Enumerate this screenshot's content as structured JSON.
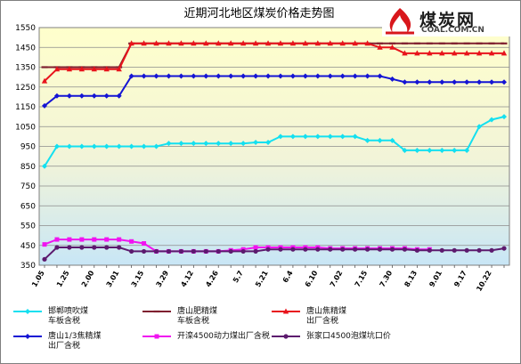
{
  "logo": {
    "cn": "煤炭网",
    "en": "COAL.COM.CN"
  },
  "chart_data": {
    "type": "line",
    "title": "近期河北地区煤炭价格走势图",
    "xlabel": "",
    "ylabel": "",
    "ylim": [
      350,
      1550
    ],
    "yticks": [
      350,
      450,
      550,
      650,
      750,
      850,
      950,
      1050,
      1150,
      1250,
      1350,
      1450,
      1550
    ],
    "grid": true,
    "legend_position": "bottom",
    "x": [
      "1.05",
      "1.10",
      "1.25",
      "1.30",
      "2.00",
      "2.05",
      "3.01",
      "3.10",
      "3.15",
      "3.20",
      "3.29",
      "4.05",
      "4.12",
      "4.19",
      "4.26",
      "5.01",
      "5.7",
      "5.14",
      "5.21",
      "6.1",
      "6.4",
      "6.7",
      "6.10",
      "6.20",
      "7.02",
      "7.07",
      "7.15",
      "7.25",
      "7.30",
      "8.05",
      "8.13",
      "8.20",
      "9.01",
      "9.10",
      "9.17",
      "10.01",
      "10.22",
      "10.30"
    ],
    "xticks": [
      "1.05",
      "1.25",
      "2.00",
      "3.01",
      "3.15",
      "3.29",
      "4.12",
      "4.26",
      "5.7",
      "5.21",
      "6.4",
      "6.10",
      "7.02",
      "7.15",
      "7.30",
      "8.13",
      "9.01",
      "9.17",
      "10.22"
    ],
    "series": [
      {
        "name": "邯郸喷吹煤车板含税",
        "color": "#14e0f0",
        "marker": "diamond",
        "values": [
          850,
          950,
          950,
          950,
          950,
          950,
          950,
          950,
          950,
          950,
          965,
          965,
          965,
          965,
          965,
          965,
          965,
          970,
          970,
          1000,
          1000,
          1000,
          1000,
          1000,
          1000,
          1000,
          980,
          980,
          980,
          930,
          930,
          930,
          930,
          930,
          930,
          1050,
          1085,
          1100
        ]
      },
      {
        "name": "唐山肥精煤车板含税",
        "color": "#7f1f2f",
        "marker": "dash",
        "values": [
          1350,
          1350,
          1350,
          1350,
          1350,
          1350,
          1350,
          1470,
          1470,
          1470,
          1470,
          1470,
          1470,
          1470,
          1470,
          1470,
          1470,
          1470,
          1470,
          1470,
          1470,
          1470,
          1470,
          1470,
          1470,
          1470,
          1470,
          1470,
          1470,
          1470,
          1470,
          1470,
          1470,
          1470,
          1470,
          1470,
          1470,
          1470
        ]
      },
      {
        "name": "唐山焦精煤出厂含税",
        "color": "#e8141c",
        "marker": "triangle",
        "values": [
          1280,
          1340,
          1340,
          1340,
          1340,
          1340,
          1340,
          1470,
          1470,
          1470,
          1470,
          1470,
          1470,
          1470,
          1470,
          1470,
          1470,
          1470,
          1470,
          1470,
          1470,
          1470,
          1470,
          1470,
          1470,
          1470,
          1470,
          1450,
          1450,
          1420,
          1420,
          1420,
          1420,
          1420,
          1420,
          1420,
          1420,
          1420
        ]
      },
      {
        "name": "唐山1/3焦精煤出厂含税",
        "color": "#1414d4",
        "marker": "diamond",
        "values": [
          1155,
          1205,
          1205,
          1205,
          1205,
          1205,
          1205,
          1305,
          1305,
          1305,
          1305,
          1305,
          1305,
          1305,
          1305,
          1305,
          1305,
          1305,
          1305,
          1305,
          1305,
          1305,
          1305,
          1305,
          1305,
          1305,
          1305,
          1305,
          1290,
          1275,
          1275,
          1275,
          1275,
          1275,
          1275,
          1275,
          1275,
          1275
        ]
      },
      {
        "name": "开滦4500动力煤出厂含税",
        "color": "#f014f0",
        "marker": "square",
        "values": [
          455,
          480,
          480,
          480,
          480,
          480,
          480,
          470,
          460,
          420,
          420,
          420,
          420,
          420,
          420,
          425,
          430,
          440,
          440,
          440,
          440,
          440,
          440,
          435,
          435,
          435,
          435,
          435,
          435,
          435,
          430,
          430,
          null,
          null,
          null,
          null,
          null,
          null
        ]
      },
      {
        "name": "张家口4500泡煤坑口价",
        "color": "#5c1a6e",
        "marker": "circle",
        "values": [
          380,
          440,
          440,
          440,
          440,
          440,
          440,
          420,
          420,
          420,
          420,
          420,
          420,
          420,
          420,
          420,
          420,
          420,
          430,
          430,
          430,
          430,
          430,
          430,
          430,
          430,
          430,
          430,
          430,
          430,
          425,
          425,
          425,
          425,
          425,
          425,
          425,
          435
        ]
      }
    ]
  }
}
